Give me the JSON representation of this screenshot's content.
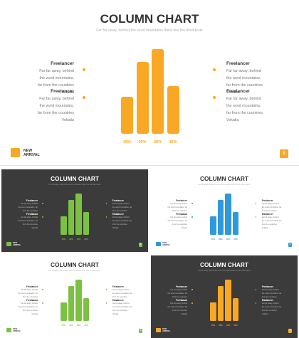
{
  "title": "COLUMN CHART",
  "subtitle": "Far far away, behind the word mountains there live the blind texts",
  "block_heading": "Freelancer",
  "block_text": "Far far away, behind the word mountains, far from the countries Vokalia",
  "logo_line1": "NEW",
  "logo_line2": "ARRIVAL",
  "page_number": "6",
  "colors": {
    "orange": "#F9A825",
    "green": "#7CC242",
    "blue": "#2E9ADB",
    "dark_bg": "#3B3B3B",
    "light_bg": "#FFFFFF"
  },
  "chart_data": [
    {
      "type": "bar",
      "theme": "light",
      "color": "#F9A825",
      "categories": [
        "30%",
        "30%",
        "30%",
        "30%"
      ],
      "values": [
        52,
        100,
        118,
        66
      ],
      "xlabel": "",
      "ylabel": ""
    },
    {
      "type": "bar",
      "theme": "dark",
      "color": "#7CC242",
      "categories": [
        "30%",
        "30%",
        "30%",
        "30%"
      ],
      "values": [
        52,
        100,
        118,
        66
      ],
      "xlabel": "",
      "ylabel": ""
    },
    {
      "type": "bar",
      "theme": "light",
      "color": "#2E9ADB",
      "categories": [
        "30%",
        "30%",
        "30%",
        "30%"
      ],
      "values": [
        52,
        100,
        118,
        66
      ],
      "xlabel": "",
      "ylabel": ""
    },
    {
      "type": "bar",
      "theme": "light",
      "color": "#7CC242",
      "categories": [
        "30%",
        "30%",
        "30%",
        "30%"
      ],
      "values": [
        52,
        100,
        118,
        66
      ],
      "xlabel": "",
      "ylabel": ""
    },
    {
      "type": "bar",
      "theme": "dark",
      "color": "#F9A825",
      "categories": [
        "30%",
        "30%",
        "30%",
        "30%"
      ],
      "values": [
        52,
        100,
        118,
        66
      ],
      "xlabel": "",
      "ylabel": ""
    }
  ]
}
